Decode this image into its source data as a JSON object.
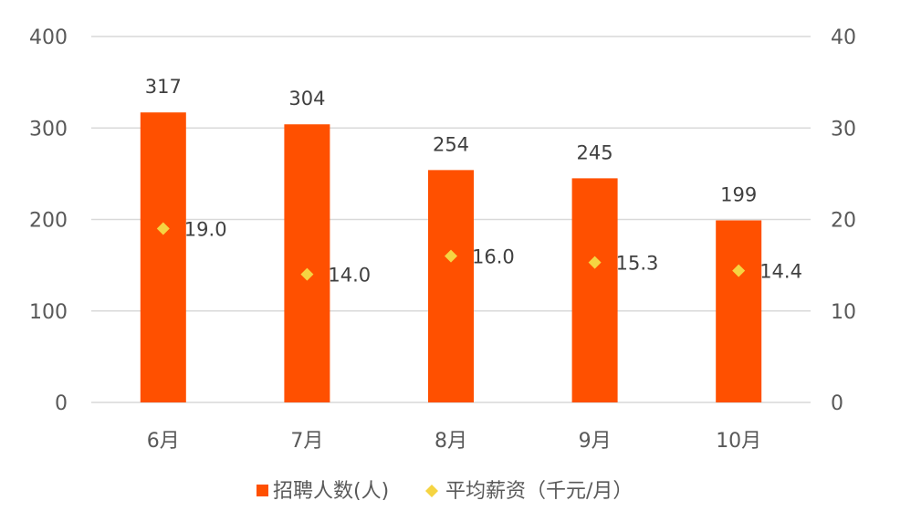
{
  "chart_data": {
    "type": "bar",
    "categories": [
      "6月",
      "7月",
      "8月",
      "9月",
      "10月"
    ],
    "series": [
      {
        "name": "招聘人数(人)",
        "type": "bar",
        "axis": "left",
        "color": "#ff5000",
        "values": [
          317,
          304,
          254,
          245,
          199
        ],
        "labels": [
          "317",
          "304",
          "254",
          "245",
          "199"
        ]
      },
      {
        "name": "平均薪资（千元/月）",
        "type": "scatter",
        "marker": "diamond",
        "axis": "right",
        "color": "#f5d442",
        "values": [
          19.0,
          14.0,
          16.0,
          15.3,
          14.4
        ],
        "labels": [
          "19.0",
          "14.0",
          "16.0",
          "15.3",
          "14.4"
        ]
      }
    ],
    "y_left": {
      "ylim": [
        0,
        400
      ],
      "ticks": [
        "0",
        "100",
        "200",
        "300",
        "400"
      ]
    },
    "y_right": {
      "ylim": [
        0,
        40
      ],
      "ticks": [
        "0",
        "10",
        "20",
        "30",
        "40"
      ]
    },
    "grid": true,
    "legend_position": "bottom"
  }
}
